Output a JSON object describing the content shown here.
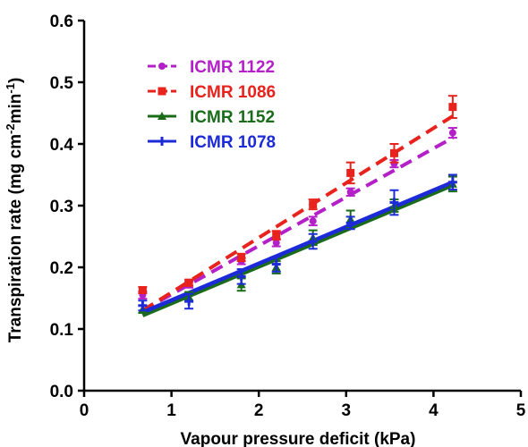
{
  "chart_data": {
    "type": "line",
    "xlabel": "Vapour pressure deficit (kPa)",
    "ylabel": "Transpiration rate (mg cm-2min-1)",
    "ylabel_parts": [
      "Transpiration rate (mg cm",
      "-2",
      "min",
      "-1",
      ")"
    ],
    "xlim": [
      0,
      5
    ],
    "ylim": [
      0,
      0.6
    ],
    "x_ticks": [
      0,
      1,
      2,
      3,
      4,
      5
    ],
    "x_tick_labels": [
      "0",
      "1",
      "2",
      "3",
      "4",
      "5"
    ],
    "y_ticks": [
      0,
      0.1,
      0.2,
      0.3,
      0.4,
      0.5,
      0.6
    ],
    "y_tick_labels": [
      "0.0",
      "0.1",
      "0.2",
      "0.3",
      "0.4",
      "0.5",
      "0.6"
    ],
    "grid": false,
    "legend_position": "top-left",
    "series": [
      {
        "name": "ICMR 1122",
        "color": "#B420C8",
        "marker": "circle",
        "line": "dashed",
        "x": [
          0.67,
          1.2,
          1.8,
          2.2,
          2.62,
          3.05,
          3.55,
          4.22
        ],
        "y": [
          0.155,
          0.172,
          0.21,
          0.24,
          0.275,
          0.322,
          0.368,
          0.418
        ],
        "err": [
          0.006,
          0.005,
          0.005,
          0.006,
          0.007,
          0.006,
          0.006,
          0.008
        ],
        "fit": [
          [
            0.67,
            0.13
          ],
          [
            4.22,
            0.41
          ]
        ]
      },
      {
        "name": "ICMR 1086",
        "color": "#E8221C",
        "marker": "square",
        "line": "dashed",
        "x": [
          0.67,
          1.2,
          1.8,
          2.2,
          2.62,
          3.05,
          3.55,
          4.22
        ],
        "y": [
          0.163,
          0.175,
          0.216,
          0.252,
          0.302,
          0.353,
          0.385,
          0.46
        ],
        "err": [
          0.005,
          0.005,
          0.006,
          0.007,
          0.008,
          0.017,
          0.015,
          0.018
        ],
        "fit": [
          [
            0.67,
            0.13
          ],
          [
            4.22,
            0.445
          ]
        ]
      },
      {
        "name": "ICMR 1152",
        "color": "#1A6B1A",
        "marker": "triangle",
        "line": "solid",
        "x": [
          0.67,
          1.2,
          1.8,
          2.2,
          2.62,
          3.05,
          3.55,
          4.22
        ],
        "y": [
          0.132,
          0.152,
          0.172,
          0.2,
          0.248,
          0.278,
          0.3,
          0.335
        ],
        "err": [
          0.006,
          0.008,
          0.01,
          0.01,
          0.012,
          0.014,
          0.01,
          0.012
        ],
        "fit": [
          [
            0.67,
            0.122
          ],
          [
            4.22,
            0.333
          ]
        ]
      },
      {
        "name": "ICMR 1078",
        "color": "#1C2AD8",
        "marker": "cross",
        "line": "solid",
        "x": [
          0.67,
          1.2,
          1.8,
          2.2,
          2.62,
          3.05,
          3.55,
          4.22
        ],
        "y": [
          0.138,
          0.145,
          0.185,
          0.205,
          0.242,
          0.272,
          0.305,
          0.338
        ],
        "err": [
          0.008,
          0.012,
          0.012,
          0.012,
          0.012,
          0.01,
          0.02,
          0.012
        ],
        "fit": [
          [
            0.67,
            0.127
          ],
          [
            4.22,
            0.338
          ]
        ]
      }
    ]
  }
}
